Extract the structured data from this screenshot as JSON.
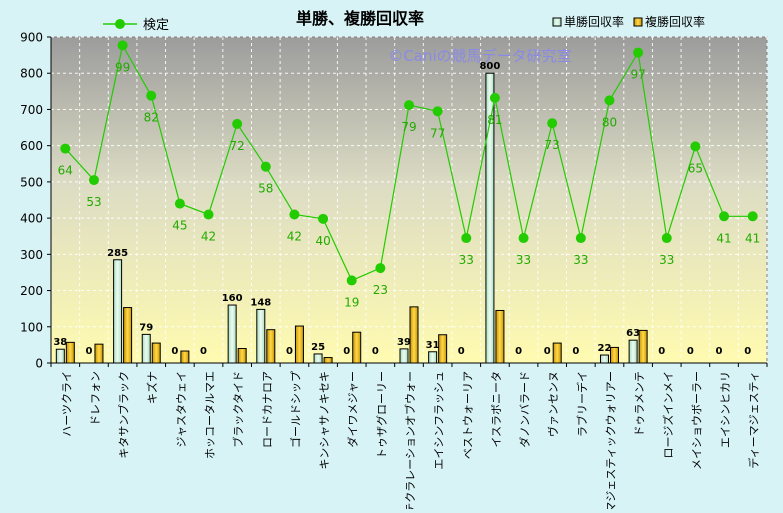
{
  "chart_data": {
    "type": "bar",
    "title": "単勝、複勝回収率",
    "watermark": "©Caniの競馬データ研究室",
    "xlabel": "",
    "ylabel": "",
    "ylim": [
      0,
      900
    ],
    "yticks": [
      0,
      100,
      200,
      300,
      400,
      500,
      600,
      700,
      800,
      900
    ],
    "grid": true,
    "legend_position": "top",
    "categories": [
      "ハーツクライ",
      "ドレフォン",
      "キタサンブラック",
      "キズナ",
      "ジャスタウェイ",
      "ホッコータルマエ",
      "ブラックタイド",
      "ロードカナロア",
      "ゴールドシップ",
      "キンシャサノキセキ",
      "ダイワメジャー",
      "トゥザグローリー",
      "テクラレーションオブウォー",
      "エイシンフラッシュ",
      "ベストウォーリア",
      "イスラボニータ",
      "ダノンバラード",
      "ヴァンセンヌ",
      "ラブリーデイ",
      "マジェスティックウォリアー",
      "ドゥラメンテ",
      "ロージズインメイ",
      "メイショウボーラー",
      "エイシンヒカリ",
      "ディーマジェスティ"
    ],
    "series": [
      {
        "name": "単勝回収率",
        "type": "bar",
        "color": "#d4f2e0",
        "values": [
          38,
          0,
          285,
          79,
          0,
          0,
          160,
          148,
          0,
          25,
          0,
          0,
          39,
          31,
          0,
          800,
          0,
          0,
          0,
          22,
          63,
          0,
          0,
          0,
          0
        ]
      },
      {
        "name": "複勝回収率",
        "type": "bar",
        "color": "#e8b800",
        "values": [
          57,
          52,
          153,
          55,
          33,
          0,
          40,
          92,
          102,
          15,
          85,
          0,
          155,
          78,
          0,
          145,
          0,
          55,
          0,
          43,
          90,
          0,
          0,
          0,
          0
        ]
      },
      {
        "name": "検定",
        "type": "line",
        "color": "#22cc00",
        "values": [
          592,
          505,
          877,
          738,
          440,
          410,
          660,
          542,
          410,
          398,
          228,
          262,
          712,
          695,
          345,
          732,
          345,
          662,
          345,
          725,
          857,
          345,
          598,
          405,
          405
        ]
      }
    ],
    "bar_labels": [
      38,
      0,
      285,
      79,
      0,
      0,
      160,
      148,
      0,
      25,
      0,
      0,
      39,
      31,
      0,
      800,
      0,
      0,
      0,
      22,
      63,
      0,
      0,
      0,
      0
    ],
    "line_labels": [
      64,
      53,
      99,
      82,
      45,
      42,
      72,
      58,
      42,
      40,
      19,
      23,
      79,
      77,
      33,
      81,
      33,
      73,
      33,
      80,
      97,
      33,
      65,
      41,
      41
    ]
  }
}
